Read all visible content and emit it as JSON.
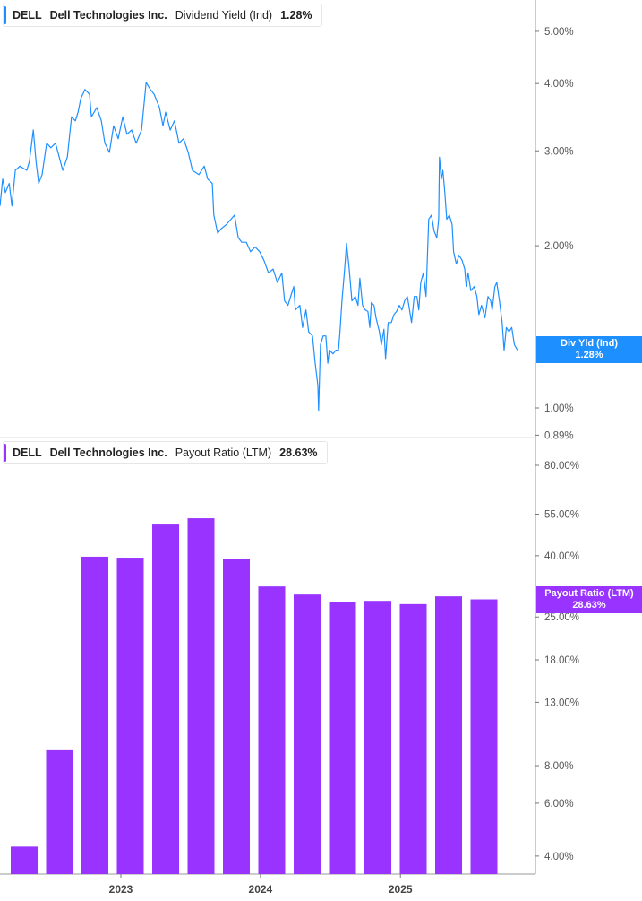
{
  "colors": {
    "yield_line": "#1e8fff",
    "payout_bar": "#9933ff",
    "axis": "#999999"
  },
  "top_legend": {
    "ticker": "DELL",
    "company": "Dell Technologies Inc.",
    "metric": "Dividend Yield (Ind)",
    "value": "1.28%"
  },
  "bottom_legend": {
    "ticker": "DELL",
    "company": "Dell Technologies Inc.",
    "metric": "Payout Ratio (LTM)",
    "value": "28.63%"
  },
  "top_flag": {
    "label": "Div Yld (Ind)",
    "value": "1.28%"
  },
  "bottom_flag": {
    "label": "Payout Ratio (LTM)",
    "value": "28.63%"
  },
  "chart_data": [
    {
      "type": "line",
      "scale": "log",
      "ylabel": "",
      "ylim": [
        0.89,
        5.6
      ],
      "y_ticks": [
        "5.00%",
        "4.00%",
        "3.00%",
        "2.00%",
        "1.00%",
        "0.89%"
      ],
      "y_tick_values": [
        5,
        4,
        3,
        2,
        1,
        0.89
      ],
      "series": [
        {
          "name": "Dividend Yield (Ind)",
          "points": [
            [
              "2022-02-19",
              2.37
            ],
            [
              "2022-02-26",
              2.66
            ],
            [
              "2022-03-05",
              2.51
            ],
            [
              "2022-03-15",
              2.61
            ],
            [
              "2022-03-22",
              2.37
            ],
            [
              "2022-03-31",
              2.76
            ],
            [
              "2022-04-12",
              2.81
            ],
            [
              "2022-04-30",
              2.76
            ],
            [
              "2022-05-07",
              2.87
            ],
            [
              "2022-05-17",
              3.28
            ],
            [
              "2022-05-24",
              2.87
            ],
            [
              "2022-05-31",
              2.61
            ],
            [
              "2022-06-09",
              2.71
            ],
            [
              "2022-06-21",
              3.1
            ],
            [
              "2022-07-02",
              3.04
            ],
            [
              "2022-07-14",
              3.1
            ],
            [
              "2022-08-02",
              2.76
            ],
            [
              "2022-08-14",
              2.92
            ],
            [
              "2022-08-25",
              3.47
            ],
            [
              "2022-09-04",
              3.41
            ],
            [
              "2022-09-11",
              3.54
            ],
            [
              "2022-09-18",
              3.75
            ],
            [
              "2022-09-29",
              3.9
            ],
            [
              "2022-10-11",
              3.82
            ],
            [
              "2022-10-16",
              3.47
            ],
            [
              "2022-10-30",
              3.61
            ],
            [
              "2022-11-11",
              3.41
            ],
            [
              "2022-11-20",
              3.1
            ],
            [
              "2022-12-02",
              2.98
            ],
            [
              "2022-12-13",
              3.34
            ],
            [
              "2022-12-25",
              3.16
            ],
            [
              "2023-01-06",
              3.47
            ],
            [
              "2023-01-17",
              3.22
            ],
            [
              "2023-01-29",
              3.28
            ],
            [
              "2023-02-10",
              3.1
            ],
            [
              "2023-02-24",
              3.28
            ],
            [
              "2023-03-08",
              4.02
            ],
            [
              "2023-03-19",
              3.9
            ],
            [
              "2023-03-29",
              3.82
            ],
            [
              "2023-04-12",
              3.61
            ],
            [
              "2023-04-21",
              3.34
            ],
            [
              "2023-04-28",
              3.54
            ],
            [
              "2023-05-10",
              3.28
            ],
            [
              "2023-05-21",
              3.41
            ],
            [
              "2023-06-02",
              3.1
            ],
            [
              "2023-06-14",
              3.16
            ],
            [
              "2023-06-26",
              2.98
            ],
            [
              "2023-07-07",
              2.76
            ],
            [
              "2023-07-24",
              2.71
            ],
            [
              "2023-08-07",
              2.81
            ],
            [
              "2023-08-16",
              2.66
            ],
            [
              "2023-08-28",
              2.61
            ],
            [
              "2023-09-01",
              2.28
            ],
            [
              "2023-09-11",
              2.11
            ],
            [
              "2023-09-20",
              2.15
            ],
            [
              "2023-10-04",
              2.19
            ],
            [
              "2023-10-16",
              2.24
            ],
            [
              "2023-10-25",
              2.28
            ],
            [
              "2023-11-04",
              2.07
            ],
            [
              "2023-11-13",
              2.03
            ],
            [
              "2023-11-25",
              2.03
            ],
            [
              "2023-12-06",
              1.95
            ],
            [
              "2023-12-18",
              1.99
            ],
            [
              "2023-12-30",
              1.95
            ],
            [
              "2024-01-10",
              1.88
            ],
            [
              "2024-01-22",
              1.78
            ],
            [
              "2024-02-03",
              1.81
            ],
            [
              "2024-02-14",
              1.71
            ],
            [
              "2024-02-26",
              1.78
            ],
            [
              "2024-03-04",
              1.58
            ],
            [
              "2024-03-13",
              1.55
            ],
            [
              "2024-03-20",
              1.61
            ],
            [
              "2024-03-28",
              1.68
            ],
            [
              "2024-04-01",
              1.52
            ],
            [
              "2024-04-13",
              1.55
            ],
            [
              "2024-04-20",
              1.41
            ],
            [
              "2024-04-29",
              1.52
            ],
            [
              "2024-05-06",
              1.385
            ],
            [
              "2024-05-16",
              1.36
            ],
            [
              "2024-05-23",
              1.21
            ],
            [
              "2024-05-30",
              1.1
            ],
            [
              "2024-06-01",
              0.99
            ],
            [
              "2024-06-06",
              1.31
            ],
            [
              "2024-06-13",
              1.36
            ],
            [
              "2024-06-20",
              1.36
            ],
            [
              "2024-06-25",
              1.21
            ],
            [
              "2024-06-29",
              1.28
            ],
            [
              "2024-07-09",
              1.26
            ],
            [
              "2024-07-16",
              1.28
            ],
            [
              "2024-07-23",
              1.28
            ],
            [
              "2024-07-27",
              1.385
            ],
            [
              "2024-08-01",
              1.58
            ],
            [
              "2024-08-08",
              1.81
            ],
            [
              "2024-08-13",
              2.02
            ],
            [
              "2024-08-20",
              1.81
            ],
            [
              "2024-08-27",
              1.58
            ],
            [
              "2024-09-05",
              1.61
            ],
            [
              "2024-09-12",
              1.55
            ],
            [
              "2024-09-17",
              1.74
            ],
            [
              "2024-09-24",
              1.55
            ],
            [
              "2024-10-01",
              1.52
            ],
            [
              "2024-10-08",
              1.51
            ],
            [
              "2024-10-13",
              1.41
            ],
            [
              "2024-10-17",
              1.57
            ],
            [
              "2024-10-24",
              1.55
            ],
            [
              "2024-10-29",
              1.47
            ],
            [
              "2024-11-07",
              1.385
            ],
            [
              "2024-11-12",
              1.31
            ],
            [
              "2024-11-19",
              1.4
            ],
            [
              "2024-11-23",
              1.235
            ],
            [
              "2024-11-30",
              1.44
            ],
            [
              "2024-12-08",
              1.44
            ],
            [
              "2024-12-15",
              1.49
            ],
            [
              "2024-12-22",
              1.51
            ],
            [
              "2024-12-29",
              1.55
            ],
            [
              "2025-01-05",
              1.52
            ],
            [
              "2025-01-12",
              1.58
            ],
            [
              "2025-01-19",
              1.61
            ],
            [
              "2025-01-23",
              1.55
            ],
            [
              "2025-01-30",
              1.44
            ],
            [
              "2025-02-06",
              1.61
            ],
            [
              "2025-02-13",
              1.61
            ],
            [
              "2025-02-18",
              1.52
            ],
            [
              "2025-02-23",
              1.71
            ],
            [
              "2025-03-02",
              1.78
            ],
            [
              "2025-03-09",
              1.61
            ],
            [
              "2025-03-16",
              2.24
            ],
            [
              "2025-03-23",
              2.28
            ],
            [
              "2025-03-30",
              2.13
            ],
            [
              "2025-04-06",
              2.07
            ],
            [
              "2025-04-11",
              2.24
            ],
            [
              "2025-04-13",
              2.92
            ],
            [
              "2025-04-18",
              2.66
            ],
            [
              "2025-04-22",
              2.76
            ],
            [
              "2025-04-27",
              2.51
            ],
            [
              "2025-05-02",
              2.24
            ],
            [
              "2025-05-09",
              2.28
            ],
            [
              "2025-05-16",
              2.19
            ],
            [
              "2025-05-20",
              1.95
            ],
            [
              "2025-05-27",
              1.85
            ],
            [
              "2025-06-03",
              1.92
            ],
            [
              "2025-06-11",
              1.88
            ],
            [
              "2025-06-18",
              1.81
            ],
            [
              "2025-06-22",
              1.68
            ],
            [
              "2025-06-27",
              1.78
            ],
            [
              "2025-07-04",
              1.65
            ],
            [
              "2025-07-13",
              1.68
            ],
            [
              "2025-07-20",
              1.61
            ],
            [
              "2025-07-25",
              1.49
            ],
            [
              "2025-08-01",
              1.55
            ],
            [
              "2025-08-10",
              1.47
            ],
            [
              "2025-08-18",
              1.61
            ],
            [
              "2025-08-25",
              1.58
            ],
            [
              "2025-08-29",
              1.52
            ],
            [
              "2025-09-05",
              1.68
            ],
            [
              "2025-09-10",
              1.71
            ],
            [
              "2025-09-17",
              1.58
            ],
            [
              "2025-09-24",
              1.44
            ],
            [
              "2025-09-29",
              1.28
            ],
            [
              "2025-10-05",
              1.41
            ],
            [
              "2025-10-12",
              1.385
            ],
            [
              "2025-10-19",
              1.41
            ],
            [
              "2025-10-26",
              1.31
            ],
            [
              "2025-11-03",
              1.28
            ]
          ]
        }
      ]
    },
    {
      "type": "bar",
      "scale": "log",
      "ylim": [
        3.8,
        95
      ],
      "y_ticks": [
        "80.00%",
        "55.00%",
        "40.00%",
        "25.00%",
        "18.00%",
        "13.00%",
        "8.00%",
        "6.00%",
        "4.00%"
      ],
      "y_tick_values": [
        80,
        55,
        40,
        25,
        18,
        13,
        8,
        6,
        4
      ],
      "x_ticks": [
        "2023",
        "2024",
        "2025"
      ],
      "categories": [
        "2022-Q2",
        "2022-Q3",
        "2022-Q4",
        "2023-Q1",
        "2023-Q2",
        "2023-Q3",
        "2023-Q4",
        "2024-Q1",
        "2024-Q2",
        "2024-Q3",
        "2024-Q4",
        "2025-Q1",
        "2025-Q2",
        "2025-Q3"
      ],
      "series": [
        {
          "name": "Payout Ratio (LTM)",
          "values": [
            4.3,
            9.0,
            39.7,
            39.4,
            50.8,
            53.3,
            39.1,
            31.6,
            29.7,
            28.1,
            28.3,
            27.6,
            29.3,
            28.63
          ]
        }
      ]
    }
  ]
}
